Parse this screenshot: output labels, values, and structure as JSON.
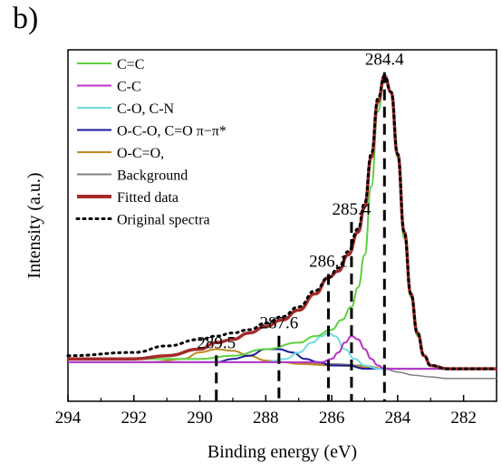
{
  "panel_label": "b)",
  "chart_data": {
    "type": "line",
    "xlabel": "Binding energy (eV)",
    "ylabel": "Intensity (a.u.)",
    "xlim": [
      294,
      281
    ],
    "x_reversed": true,
    "ylim": [
      0,
      1.08
    ],
    "y_ticks_shown": false,
    "x_ticks": [
      294,
      292,
      290,
      288,
      286,
      284,
      282
    ],
    "grid": false,
    "legend_position": "top-left",
    "legend": [
      {
        "label": "C=C",
        "color": "#5dd040",
        "style": "solid"
      },
      {
        "label": "C-C",
        "color": "#b833c8",
        "style": "solid"
      },
      {
        "label": "C-O, C-N",
        "color": "#6fdde0",
        "style": "solid"
      },
      {
        "label": "O-C-O, C=O π−π*",
        "color": "#1a1a9a",
        "style": "solid"
      },
      {
        "label": "O-C=O,",
        "color": "#c08a22",
        "style": "solid"
      },
      {
        "label": "Background",
        "color": "#808080",
        "style": "solid"
      },
      {
        "label": "Fitted data",
        "color": "#a52a2a",
        "style": "thick"
      },
      {
        "label": "Original spectra",
        "color": "#000000",
        "style": "dotted"
      }
    ],
    "peak_labels": [
      {
        "text": "284.4",
        "x": 284.4
      },
      {
        "text": "285.4",
        "x": 285.4
      },
      {
        "text": "286.1",
        "x": 286.1
      },
      {
        "text": "287.6",
        "x": 287.6
      },
      {
        "text": "289.5",
        "x": 289.5
      }
    ],
    "peak_lines": [
      {
        "x": 284.4,
        "y_top": 1.0
      },
      {
        "x": 285.4,
        "y_top": 0.54
      },
      {
        "x": 286.1,
        "y_top": 0.38
      },
      {
        "x": 287.6,
        "y_top": 0.19
      },
      {
        "x": 289.5,
        "y_top": 0.13
      }
    ],
    "series": [
      {
        "name": "C=C",
        "color": "#5dd040",
        "x": [
          294,
          292,
          290,
          289,
          288,
          287,
          286.5,
          286,
          285.7,
          285.4,
          285.2,
          285,
          284.8,
          284.6,
          284.4,
          284.2,
          284,
          283.8,
          283.6,
          283.4,
          283.2,
          283,
          282.5,
          281
        ],
        "y": [
          0.13,
          0.13,
          0.13,
          0.14,
          0.16,
          0.18,
          0.2,
          0.22,
          0.25,
          0.29,
          0.35,
          0.45,
          0.66,
          0.89,
          1.0,
          0.95,
          0.75,
          0.5,
          0.32,
          0.2,
          0.14,
          0.11,
          0.1,
          0.1
        ]
      },
      {
        "name": "C-C",
        "color": "#b833c8",
        "x": [
          294,
          287,
          286.3,
          286,
          285.8,
          285.6,
          285.4,
          285.2,
          285,
          284.8,
          284.6,
          284.4,
          284,
          283,
          281
        ],
        "y": [
          0.12,
          0.12,
          0.12,
          0.13,
          0.15,
          0.18,
          0.2,
          0.19,
          0.16,
          0.13,
          0.11,
          0.1,
          0.1,
          0.1,
          0.1
        ]
      },
      {
        "name": "C-O, C-N",
        "color": "#6fdde0",
        "x": [
          294,
          288,
          287.4,
          287,
          286.6,
          286.3,
          286.1,
          285.9,
          285.6,
          285.3,
          285,
          284.6,
          284,
          281
        ],
        "y": [
          0.12,
          0.12,
          0.13,
          0.15,
          0.18,
          0.2,
          0.21,
          0.2,
          0.16,
          0.13,
          0.11,
          0.1,
          0.1,
          0.1
        ]
      },
      {
        "name": "O-C-O, C=O π−π*",
        "color": "#1a1a9a",
        "x": [
          294,
          289.5,
          289,
          288.5,
          288,
          287.6,
          287.2,
          286.8,
          286.4,
          286,
          285.5,
          285,
          284,
          281
        ],
        "y": [
          0.12,
          0.12,
          0.13,
          0.14,
          0.16,
          0.16,
          0.15,
          0.13,
          0.12,
          0.11,
          0.11,
          0.1,
          0.1,
          0.1
        ]
      },
      {
        "name": "O-C=O,",
        "color": "#c08a22",
        "x": [
          294,
          291.5,
          290.5,
          290,
          289.5,
          289,
          288.5,
          288,
          287.5,
          287,
          286,
          284,
          281
        ],
        "y": [
          0.12,
          0.12,
          0.13,
          0.15,
          0.16,
          0.155,
          0.14,
          0.125,
          0.12,
          0.115,
          0.11,
          0.1,
          0.1
        ]
      },
      {
        "name": "Background",
        "color": "#808080",
        "x": [
          294,
          290,
          288,
          286,
          285,
          284.4,
          284,
          283.5,
          283,
          282.5,
          281
        ],
        "y": [
          0.12,
          0.12,
          0.12,
          0.115,
          0.11,
          0.1,
          0.09,
          0.08,
          0.075,
          0.07,
          0.07
        ]
      },
      {
        "name": "Fitted data",
        "color": "#a52a2a",
        "x": [
          294,
          292,
          291,
          290,
          289.5,
          289,
          288.5,
          288,
          287.5,
          287,
          286.5,
          286.1,
          285.8,
          285.5,
          285.2,
          285,
          284.8,
          284.6,
          284.4,
          284.2,
          284,
          283.8,
          283.6,
          283.4,
          283.2,
          283,
          282.5,
          281
        ],
        "y": [
          0.13,
          0.13,
          0.14,
          0.16,
          0.18,
          0.19,
          0.21,
          0.23,
          0.25,
          0.28,
          0.33,
          0.38,
          0.4,
          0.45,
          0.52,
          0.6,
          0.75,
          0.92,
          1.0,
          0.95,
          0.76,
          0.52,
          0.33,
          0.21,
          0.14,
          0.11,
          0.1,
          0.1
        ]
      },
      {
        "name": "Original spectra",
        "color": "#000000",
        "x": [
          294,
          292,
          291,
          290,
          289.5,
          289,
          288.5,
          288,
          287.5,
          287,
          286.5,
          286.1,
          285.8,
          285.5,
          285.2,
          285,
          284.8,
          284.6,
          284.4,
          284.2,
          284,
          283.8,
          283.6,
          283.4,
          283.2,
          283,
          282.5,
          281
        ],
        "y": [
          0.14,
          0.15,
          0.17,
          0.19,
          0.2,
          0.21,
          0.22,
          0.24,
          0.26,
          0.29,
          0.34,
          0.38,
          0.41,
          0.46,
          0.53,
          0.61,
          0.76,
          0.93,
          1.0,
          0.95,
          0.76,
          0.52,
          0.33,
          0.21,
          0.14,
          0.11,
          0.1,
          0.1
        ]
      }
    ]
  }
}
